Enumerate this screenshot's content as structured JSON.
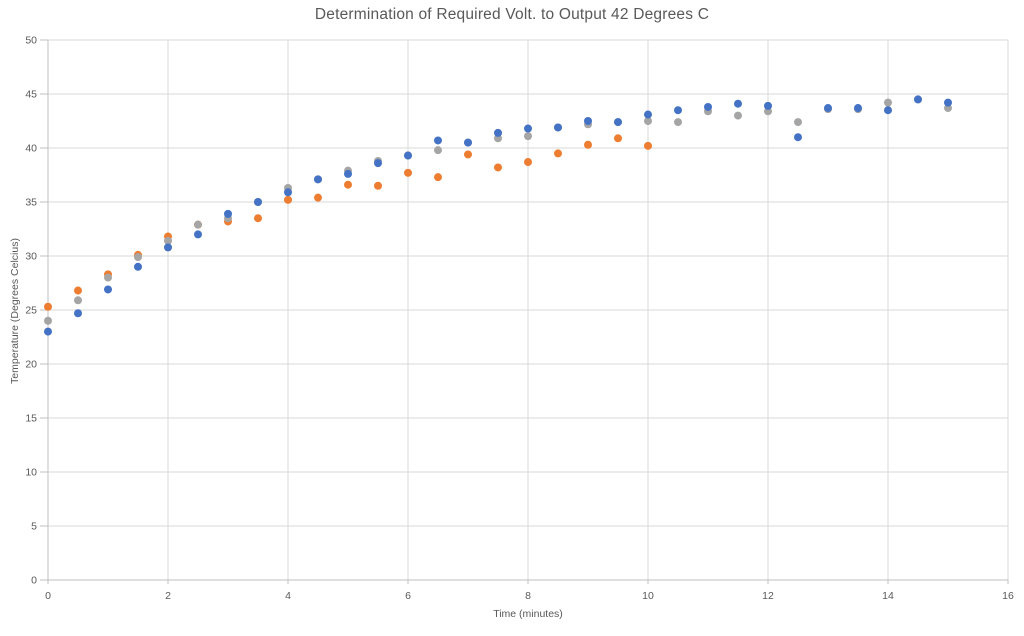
{
  "chart_data": {
    "type": "scatter",
    "title": "Determination of Required Volt. to Output 42 Degrees C",
    "xlabel": "Time (minutes)",
    "ylabel": "Temperature (Degrees Celcius)",
    "xlim": [
      0,
      16
    ],
    "ylim": [
      0,
      50
    ],
    "x_ticks": [
      0,
      2,
      4,
      6,
      8,
      10,
      12,
      14,
      16
    ],
    "y_ticks": [
      0,
      5,
      10,
      15,
      20,
      25,
      30,
      35,
      40,
      45,
      50
    ],
    "grid": true,
    "legend": "none",
    "marker_color_blue": "#4472C4",
    "marker_color_orange": "#ED7D31",
    "marker_color_gray": "#A5A5A5",
    "gridline_color": "#D9D9D9",
    "axis_line_color": "#BFBFBF",
    "text_color": "#595959",
    "series": [
      {
        "name": "orange-series",
        "color": "#ED7D31",
        "points": [
          [
            0,
            25.3
          ],
          [
            0.5,
            26.8
          ],
          [
            1,
            28.3
          ],
          [
            1.5,
            30.1
          ],
          [
            2,
            31.8
          ],
          [
            2.5,
            32.9
          ],
          [
            3,
            33.2
          ],
          [
            3.5,
            33.5
          ],
          [
            4,
            35.2
          ],
          [
            4.5,
            35.4
          ],
          [
            5,
            36.6
          ],
          [
            5.5,
            36.5
          ],
          [
            6,
            37.7
          ],
          [
            6.5,
            37.3
          ],
          [
            7,
            39.4
          ],
          [
            7.5,
            38.2
          ],
          [
            8,
            38.7
          ],
          [
            8.5,
            39.5
          ],
          [
            9,
            40.3
          ],
          [
            9.5,
            40.9
          ],
          [
            10,
            40.2
          ]
        ]
      },
      {
        "name": "gray-series",
        "color": "#A5A5A5",
        "points": [
          [
            0,
            24.0
          ],
          [
            0.5,
            25.9
          ],
          [
            1,
            28.0
          ],
          [
            1.5,
            29.9
          ],
          [
            2,
            31.4
          ],
          [
            2.5,
            32.9
          ],
          [
            3,
            33.5
          ],
          [
            3.5,
            35.0
          ],
          [
            4,
            36.3
          ],
          [
            4.5,
            37.1
          ],
          [
            5,
            37.9
          ],
          [
            5.5,
            38.8
          ],
          [
            6,
            39.3
          ],
          [
            6.5,
            39.8
          ],
          [
            7,
            40.5
          ],
          [
            7.5,
            40.9
          ],
          [
            8,
            41.1
          ],
          [
            8.5,
            41.9
          ],
          [
            9,
            42.2
          ],
          [
            9.5,
            42.4
          ],
          [
            10,
            42.5
          ],
          [
            10.5,
            42.4
          ],
          [
            11,
            43.4
          ],
          [
            11.5,
            43.0
          ],
          [
            12,
            43.4
          ],
          [
            12.5,
            42.4
          ],
          [
            13,
            43.6
          ],
          [
            13.5,
            43.6
          ],
          [
            14,
            44.2
          ],
          [
            14.5,
            44.5
          ],
          [
            15,
            43.7
          ]
        ]
      },
      {
        "name": "blue-series",
        "color": "#4472C4",
        "points": [
          [
            0,
            23.0
          ],
          [
            0.5,
            24.7
          ],
          [
            1,
            26.9
          ],
          [
            1.5,
            29.0
          ],
          [
            2,
            30.8
          ],
          [
            2.5,
            32.0
          ],
          [
            3,
            33.9
          ],
          [
            3.5,
            35.0
          ],
          [
            4,
            35.9
          ],
          [
            4.5,
            37.1
          ],
          [
            5,
            37.6
          ],
          [
            5.5,
            38.6
          ],
          [
            6,
            39.3
          ],
          [
            6.5,
            40.7
          ],
          [
            7,
            40.5
          ],
          [
            7.5,
            41.4
          ],
          [
            8,
            41.8
          ],
          [
            8.5,
            41.9
          ],
          [
            9,
            42.5
          ],
          [
            9.5,
            42.4
          ],
          [
            10,
            43.1
          ],
          [
            10.5,
            43.5
          ],
          [
            11,
            43.8
          ],
          [
            11.5,
            44.1
          ],
          [
            12,
            43.9
          ],
          [
            12.5,
            41.0
          ],
          [
            13,
            43.7
          ],
          [
            13.5,
            43.7
          ],
          [
            14,
            43.5
          ],
          [
            14.5,
            44.5
          ],
          [
            15,
            44.2
          ]
        ]
      }
    ]
  }
}
